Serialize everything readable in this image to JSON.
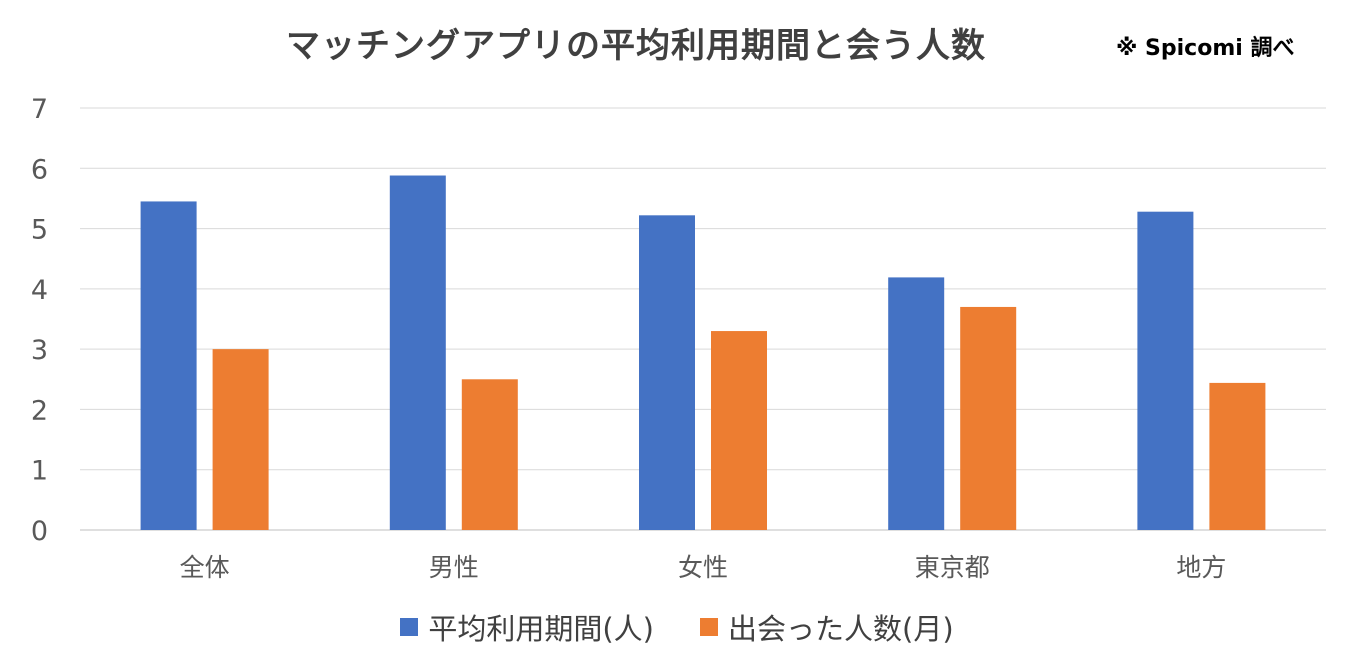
{
  "chart_data": {
    "type": "bar",
    "title": "マッチングアプリの平均利用期間と会う人数",
    "source_note": "※ Spicomi 調べ",
    "categories": [
      "全体",
      "男性",
      "女性",
      "東京都",
      "地方"
    ],
    "series": [
      {
        "name": "平均利用期間(人)",
        "color": "#4472C4",
        "values": [
          5.45,
          5.88,
          5.22,
          4.19,
          5.28
        ]
      },
      {
        "name": "出会った人数(月)",
        "color": "#ED7D31",
        "values": [
          3.0,
          2.5,
          3.3,
          3.7,
          2.44
        ]
      }
    ],
    "y_ticks": [
      0,
      1,
      2,
      3,
      4,
      5,
      6,
      7
    ],
    "ylim": [
      0,
      7
    ],
    "xlabel": "",
    "ylabel": "",
    "grid": true,
    "legend_position": "bottom"
  }
}
